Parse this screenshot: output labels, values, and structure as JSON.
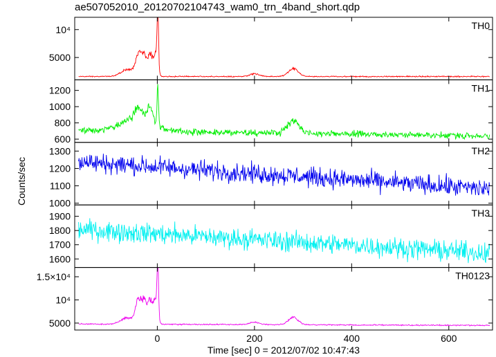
{
  "chart_data": {
    "type": "line",
    "title": "ae507052010_20120702104743_wam0_trn_4band_short.qdp",
    "xlabel": "Time [sec] 0 = 2012/07/02 10:47:43",
    "ylabel": "Counts/sec",
    "xlim": [
      -170,
      690
    ],
    "x_ticks": [
      0,
      200,
      400,
      600
    ],
    "grid": false,
    "panels": [
      {
        "name": "TH0",
        "color": "#ff0000",
        "ylim": [
          1000,
          12200
        ],
        "y_ticks": [
          {
            "value": 5000,
            "label": "5000"
          },
          {
            "value": 10000,
            "label": "10⁴"
          }
        ],
        "baseline": 1600,
        "noise": 100,
        "drift": 0,
        "peaks": [
          {
            "x": -60,
            "height": 1300,
            "width": 14
          },
          {
            "x": -38,
            "height": 3900,
            "width": 6
          },
          {
            "x": -26,
            "height": 3200,
            "width": 5
          },
          {
            "x": -14,
            "height": 3800,
            "width": 5
          },
          {
            "x": -3,
            "height": 3800,
            "width": 4
          },
          {
            "x": 1,
            "height": 10800,
            "width": 1.5
          },
          {
            "x": 200,
            "height": 500,
            "width": 10
          },
          {
            "x": 280,
            "height": 1400,
            "width": 10
          }
        ]
      },
      {
        "name": "TH1",
        "color": "#00ee00",
        "ylim": [
          560,
          1330
        ],
        "y_ticks": [
          {
            "value": 600,
            "label": "600"
          },
          {
            "value": 800,
            "label": "800"
          },
          {
            "value": 1000,
            "label": "1000"
          },
          {
            "value": 1200,
            "label": "1200"
          }
        ],
        "baseline": 710,
        "noise": 40,
        "drift": -70,
        "peaks": [
          {
            "x": -40,
            "height": 180,
            "width": 30
          },
          {
            "x": -40,
            "height": 120,
            "width": 6
          },
          {
            "x": -15,
            "height": 170,
            "width": 6
          },
          {
            "x": 1,
            "height": 520,
            "width": 1.5
          },
          {
            "x": 280,
            "height": 150,
            "width": 12
          }
        ]
      },
      {
        "name": "TH2",
        "color": "#0000ee",
        "ylim": [
          990,
          1350
        ],
        "y_ticks": [
          {
            "value": 1000,
            "label": "1000"
          },
          {
            "value": 1100,
            "label": "1100"
          },
          {
            "value": 1200,
            "label": "1200"
          },
          {
            "value": 1300,
            "label": "1300"
          }
        ],
        "baseline": 1240,
        "noise": 55,
        "drift": -160,
        "peaks": []
      },
      {
        "name": "TH3",
        "color": "#00f0f0",
        "ylim": [
          1540,
          1980
        ],
        "y_ticks": [
          {
            "value": 1600,
            "label": "1600"
          },
          {
            "value": 1700,
            "label": "1700"
          },
          {
            "value": 1800,
            "label": "1800"
          },
          {
            "value": 1900,
            "label": "1900"
          }
        ],
        "baseline": 1810,
        "noise": 70,
        "drift": -170,
        "peaks": []
      },
      {
        "name": "TH0123",
        "color": "#ee00ee",
        "ylim": [
          3500,
          17000
        ],
        "y_ticks": [
          {
            "value": 5000,
            "label": "5000"
          },
          {
            "value": 10000,
            "label": "10⁴"
          },
          {
            "value": 15000,
            "label": "1.5×10⁴"
          }
        ],
        "baseline": 4800,
        "noise": 120,
        "drift": -300,
        "peaks": [
          {
            "x": -60,
            "height": 1400,
            "width": 14
          },
          {
            "x": -38,
            "height": 5200,
            "width": 6
          },
          {
            "x": -26,
            "height": 4400,
            "width": 5
          },
          {
            "x": -14,
            "height": 5000,
            "width": 5
          },
          {
            "x": -3,
            "height": 5200,
            "width": 4
          },
          {
            "x": 1,
            "height": 11500,
            "width": 1.5
          },
          {
            "x": 200,
            "height": 500,
            "width": 10
          },
          {
            "x": 280,
            "height": 1600,
            "width": 10
          }
        ]
      }
    ]
  }
}
